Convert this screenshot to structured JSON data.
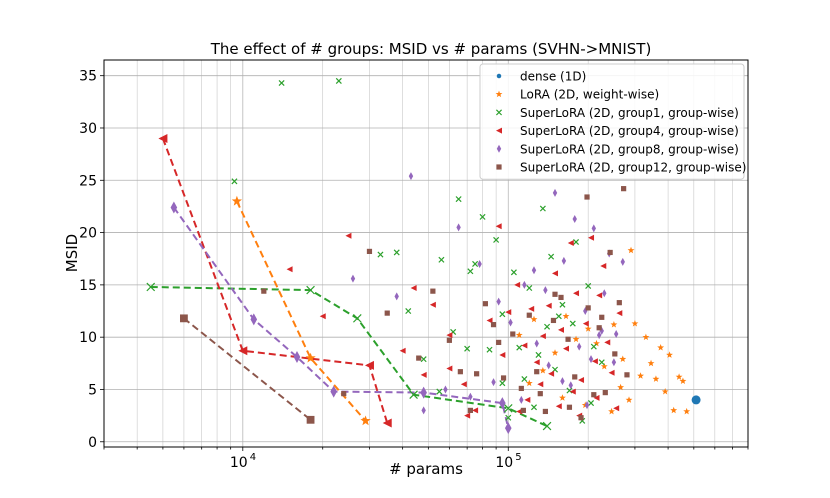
{
  "chart_data": {
    "type": "scatter",
    "title": "The effect of # groups: MSID vs # params (SVHN->MNIST)",
    "xlabel": "# params",
    "ylabel": "MSID",
    "xscale": "log",
    "xlim": [
      3000,
      800000
    ],
    "ylim": [
      -0.5,
      36.5
    ],
    "grid": true,
    "legend_loc": "top-right",
    "x_major_ticks": [
      {
        "value": 10000,
        "label": "10",
        "exp": "4"
      },
      {
        "value": 100000,
        "label": "10",
        "exp": "5"
      }
    ],
    "y_ticks": [
      0,
      5,
      10,
      15,
      20,
      25,
      30,
      35
    ],
    "series": [
      {
        "name": "dense (1D)",
        "marker": "circle",
        "color": "#1f77b4",
        "points": [
          [
            510000,
            4.0
          ]
        ]
      },
      {
        "name": "LoRA (2D, weight-wise)",
        "marker": "star",
        "color": "#ff7f0e",
        "line": [
          [
            9500,
            23.0
          ],
          [
            18000,
            8.0
          ],
          [
            29000,
            2.0
          ]
        ],
        "points": [
          [
            110000,
            10.2
          ],
          [
            125000,
            11.7
          ],
          [
            135000,
            6.8
          ],
          [
            150000,
            8.5
          ],
          [
            165000,
            12.0
          ],
          [
            180000,
            9.8
          ],
          [
            200000,
            10.8
          ],
          [
            215000,
            9.4
          ],
          [
            230000,
            7.2
          ],
          [
            250000,
            11.2
          ],
          [
            265000,
            5.2
          ],
          [
            285000,
            4.0
          ],
          [
            300000,
            11.3
          ],
          [
            315000,
            6.3
          ],
          [
            330000,
            10.0
          ],
          [
            345000,
            7.5
          ],
          [
            360000,
            6.0
          ],
          [
            375000,
            9.0
          ],
          [
            390000,
            4.8
          ],
          [
            405000,
            8.3
          ],
          [
            420000,
            3.0
          ],
          [
            440000,
            6.2
          ],
          [
            455000,
            5.8
          ],
          [
            470000,
            2.9
          ],
          [
            290000,
            18.3
          ],
          [
            120000,
            5.6
          ],
          [
            160000,
            4.2
          ],
          [
            195000,
            3.5
          ],
          [
            245000,
            2.9
          ],
          [
            270000,
            7.9
          ]
        ]
      },
      {
        "name": "SuperLoRA (2D, group1, group-wise)",
        "marker": "x",
        "color": "#2ca02c",
        "line": [
          [
            4500,
            14.8
          ],
          [
            18000,
            14.5
          ],
          [
            27000,
            11.8
          ],
          [
            44000,
            4.5
          ],
          [
            100000,
            3.2
          ],
          [
            140000,
            1.5
          ]
        ],
        "points": [
          [
            14000,
            34.3
          ],
          [
            23000,
            34.5
          ],
          [
            9300,
            24.9
          ],
          [
            33000,
            17.9
          ],
          [
            38000,
            18.1
          ],
          [
            56000,
            17.4
          ],
          [
            65000,
            23.2
          ],
          [
            72000,
            16.3
          ],
          [
            80000,
            21.5
          ],
          [
            75000,
            17.0
          ],
          [
            90000,
            19.3
          ],
          [
            95000,
            12.2
          ],
          [
            105000,
            16.2
          ],
          [
            110000,
            9.0
          ],
          [
            120000,
            14.7
          ],
          [
            135000,
            22.3
          ],
          [
            145000,
            17.7
          ],
          [
            160000,
            13.1
          ],
          [
            180000,
            19.1
          ],
          [
            200000,
            14.9
          ],
          [
            130000,
            8.3
          ],
          [
            150000,
            6.9
          ],
          [
            170000,
            4.9
          ],
          [
            210000,
            9.1
          ],
          [
            190000,
            2.0
          ],
          [
            115000,
            6.0
          ],
          [
            95000,
            5.6
          ],
          [
            85000,
            8.8
          ],
          [
            70000,
            8.9
          ],
          [
            62000,
            10.5
          ],
          [
            42000,
            12.5
          ],
          [
            48000,
            7.9
          ],
          [
            55000,
            4.8
          ],
          [
            100000,
            2.3
          ],
          [
            125000,
            3.3
          ],
          [
            155000,
            12.0
          ],
          [
            175000,
            11.3
          ],
          [
            225000,
            7.6
          ],
          [
            205000,
            3.7
          ],
          [
            140000,
            11.0
          ]
        ]
      },
      {
        "name": "SuperLoRA (2D, group4, group-wise)",
        "marker": "triangle-left",
        "color": "#d62728",
        "line": [
          [
            5000,
            29.0
          ],
          [
            10000,
            8.7
          ],
          [
            30000,
            7.3
          ],
          [
            35000,
            1.8
          ]
        ],
        "points": [
          [
            25000,
            19.7
          ],
          [
            15000,
            16.5
          ],
          [
            20000,
            12.0
          ],
          [
            44000,
            14.7
          ],
          [
            60000,
            10.2
          ],
          [
            68000,
            5.5
          ],
          [
            75000,
            3.0
          ],
          [
            85000,
            11.6
          ],
          [
            92000,
            20.6
          ],
          [
            100000,
            12.4
          ],
          [
            108000,
            15.0
          ],
          [
            115000,
            9.2
          ],
          [
            122000,
            12.7
          ],
          [
            128000,
            7.6
          ],
          [
            135000,
            10.1
          ],
          [
            142000,
            13.0
          ],
          [
            150000,
            16.1
          ],
          [
            158000,
            10.7
          ],
          [
            165000,
            8.9
          ],
          [
            172000,
            19.0
          ],
          [
            180000,
            14.2
          ],
          [
            188000,
            5.9
          ],
          [
            196000,
            11.3
          ],
          [
            205000,
            19.5
          ],
          [
            212000,
            7.7
          ],
          [
            220000,
            14.0
          ],
          [
            228000,
            16.8
          ],
          [
            236000,
            9.5
          ],
          [
            245000,
            6.6
          ],
          [
            255000,
            3.2
          ],
          [
            262000,
            12.3
          ],
          [
            118000,
            4.0
          ],
          [
            132000,
            5.5
          ],
          [
            155000,
            3.4
          ],
          [
            185000,
            2.5
          ],
          [
            215000,
            4.2
          ],
          [
            95000,
            8.3
          ],
          [
            70000,
            2.5
          ],
          [
            110000,
            2.9
          ],
          [
            145000,
            6.5
          ],
          [
            175000,
            4.8
          ],
          [
            60000,
            7.0
          ],
          [
            48000,
            6.4
          ],
          [
            40000,
            8.7
          ],
          [
            52000,
            13.1
          ]
        ]
      },
      {
        "name": "SuperLoRA (2D, group8, group-wise)",
        "marker": "thin_diamond",
        "color": "#9467bd",
        "line": [
          [
            5500,
            22.4
          ],
          [
            11000,
            11.7
          ],
          [
            16000,
            8.1
          ],
          [
            22000,
            4.8
          ],
          [
            48000,
            4.7
          ],
          [
            95000,
            3.7
          ],
          [
            100000,
            1.3
          ]
        ],
        "points": [
          [
            26000,
            15.6
          ],
          [
            38000,
            13.9
          ],
          [
            43000,
            25.4
          ],
          [
            65000,
            20.5
          ],
          [
            78000,
            17.0
          ],
          [
            92000,
            13.4
          ],
          [
            102000,
            11.4
          ],
          [
            115000,
            15.0
          ],
          [
            125000,
            16.4
          ],
          [
            138000,
            14.5
          ],
          [
            150000,
            23.8
          ],
          [
            162000,
            17.3
          ],
          [
            178000,
            21.3
          ],
          [
            195000,
            12.5
          ],
          [
            210000,
            20.4
          ],
          [
            225000,
            10.6
          ],
          [
            240000,
            18.0
          ],
          [
            255000,
            10.3
          ],
          [
            230000,
            14.2
          ],
          [
            205000,
            7.9
          ],
          [
            185000,
            9.1
          ],
          [
            172000,
            5.4
          ],
          [
            142000,
            7.3
          ],
          [
            128000,
            9.4
          ],
          [
            112000,
            4.0
          ],
          [
            88000,
            5.7
          ],
          [
            72000,
            4.3
          ],
          [
            58000,
            5.0
          ],
          [
            48000,
            3.0
          ],
          [
            160000,
            5.8
          ],
          [
            198000,
            3.5
          ],
          [
            220000,
            10.2
          ],
          [
            250000,
            7.6
          ],
          [
            270000,
            17.2
          ]
        ]
      },
      {
        "name": "SuperLoRA (2D, group12, group-wise)",
        "marker": "square",
        "color": "#8c564b",
        "line": [
          [
            6000,
            11.8
          ],
          [
            18000,
            2.1
          ]
        ],
        "points": [
          [
            12000,
            14.4
          ],
          [
            24000,
            4.6
          ],
          [
            30000,
            18.2
          ],
          [
            35000,
            12.3
          ],
          [
            46000,
            8.0
          ],
          [
            52000,
            14.4
          ],
          [
            60000,
            9.7
          ],
          [
            66000,
            6.7
          ],
          [
            72000,
            3.0
          ],
          [
            82000,
            13.2
          ],
          [
            88000,
            11.2
          ],
          [
            96000,
            6.1
          ],
          [
            104000,
            10.3
          ],
          [
            114000,
            3.0
          ],
          [
            120000,
            12.1
          ],
          [
            128000,
            6.7
          ],
          [
            138000,
            2.9
          ],
          [
            148000,
            11.6
          ],
          [
            158000,
            13.8
          ],
          [
            168000,
            9.8
          ],
          [
            178000,
            6.2
          ],
          [
            188000,
            2.3
          ],
          [
            198000,
            23.4
          ],
          [
            210000,
            4.5
          ],
          [
            220000,
            10.9
          ],
          [
            232000,
            4.7
          ],
          [
            242000,
            18.1
          ],
          [
            252000,
            8.4
          ],
          [
            262000,
            13.3
          ],
          [
            272000,
            24.2
          ],
          [
            280000,
            6.4
          ],
          [
            225000,
            11.9
          ],
          [
            200000,
            12.8
          ],
          [
            150000,
            14.1
          ],
          [
            112000,
            5.1
          ],
          [
            92000,
            9.5
          ],
          [
            76000,
            6.5
          ],
          [
            132000,
            4.6
          ],
          [
            170000,
            3.3
          ]
        ]
      }
    ]
  }
}
